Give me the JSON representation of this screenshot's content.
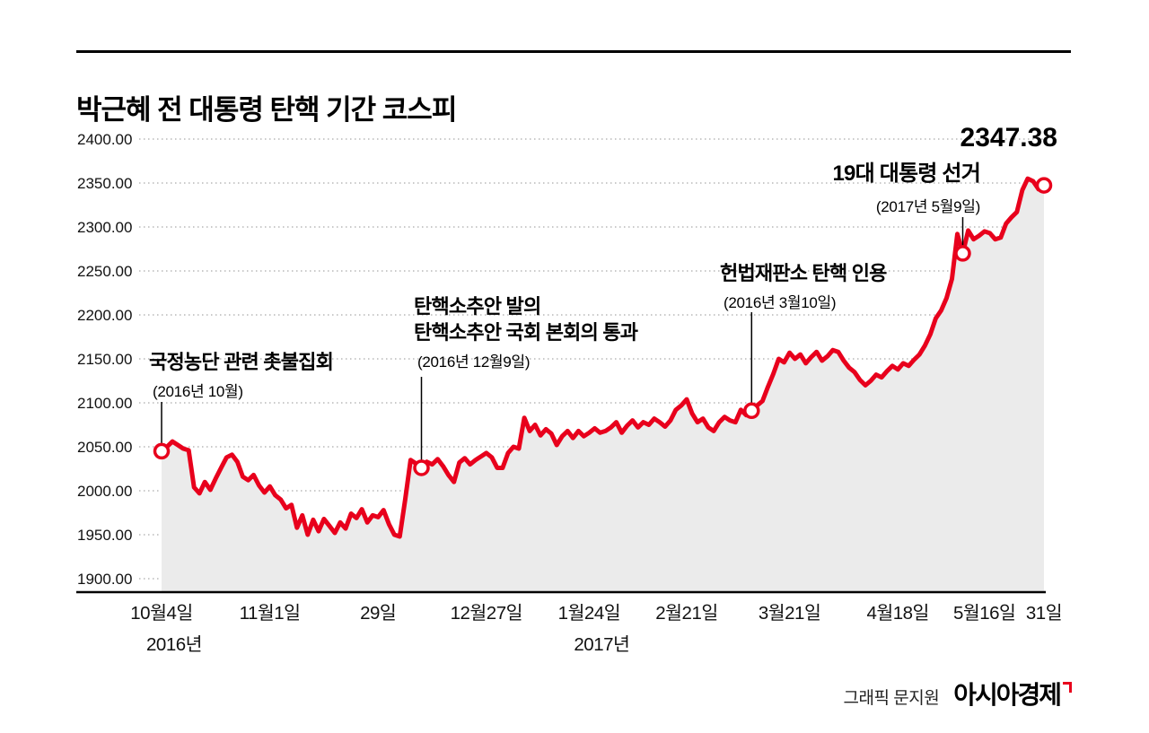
{
  "header": {
    "title": "박근혜 전 대통령 탄핵 기간 코스피"
  },
  "final_label": "2347.38",
  "annotations": [
    {
      "lines": [
        "국정농단 관련 촛불집회"
      ],
      "date": "(2016년 10월)"
    },
    {
      "lines": [
        "탄핵소추안 발의",
        "탄핵소추안 국회 본회의 통과"
      ],
      "date": "(2016년 12월9일)"
    },
    {
      "lines": [
        "헌법재판소 탄핵 인용"
      ],
      "date": "(2016년 3월10일)"
    },
    {
      "lines": [
        "19대 대통령 선거"
      ],
      "date": "(2017년 5월9일)"
    }
  ],
  "footer": {
    "credit": "그래픽 문지원",
    "brand": "아시아경제"
  },
  "chart_data": {
    "type": "line",
    "title": "박근혜 전 대통령 탄핵 기간 코스피",
    "ylabel": "KOSPI",
    "ylim": [
      1900,
      2400
    ],
    "grid": "dotted-horizontal",
    "line_color": "#e8001c",
    "area_color": "#ebebeb",
    "y_ticks": [
      "2400.00",
      "2350.00",
      "2300.00",
      "2250.00",
      "2200.00",
      "2150.00",
      "2100.00",
      "2050.00",
      "2000.00",
      "1950.00",
      "1900.00"
    ],
    "x_ticks": [
      {
        "label": "10월4일",
        "index": 0,
        "year": "2016년"
      },
      {
        "label": "11월1일",
        "index": 20
      },
      {
        "label": "29일",
        "index": 40
      },
      {
        "label": "12월27일",
        "index": 60
      },
      {
        "label": "1월24일",
        "index": 79,
        "year": "2017년"
      },
      {
        "label": "2월21일",
        "index": 97
      },
      {
        "label": "3월21일",
        "index": 116
      },
      {
        "label": "4월18일",
        "index": 136
      },
      {
        "label": "5월16일",
        "index": 152
      },
      {
        "label": "31일",
        "index": 163
      }
    ],
    "markers": [
      0,
      48,
      109,
      148,
      163
    ],
    "last_value": 2347.38,
    "series": [
      {
        "name": "코스피",
        "values": [
          2045,
          2050,
          2056,
          2052,
          2048,
          2046,
          2004,
          1997,
          2010,
          2001,
          2014,
          2026,
          2038,
          2041,
          2033,
          2016,
          2012,
          2018,
          2006,
          1998,
          2005,
          1995,
          1990,
          1980,
          1984,
          1958,
          1972,
          1950,
          1967,
          1954,
          1968,
          1960,
          1952,
          1964,
          1957,
          1974,
          1969,
          1979,
          1964,
          1972,
          1970,
          1978,
          1962,
          1950,
          1948,
          1990,
          2035,
          2031,
          2026,
          2033,
          2030,
          2036,
          2028,
          2018,
          2010,
          2032,
          2037,
          2030,
          2035,
          2039,
          2043,
          2038,
          2026,
          2026,
          2043,
          2050,
          2048,
          2083,
          2068,
          2075,
          2063,
          2070,
          2065,
          2052,
          2062,
          2068,
          2060,
          2068,
          2062,
          2066,
          2071,
          2066,
          2068,
          2072,
          2078,
          2066,
          2074,
          2080,
          2072,
          2078,
          2075,
          2082,
          2078,
          2073,
          2080,
          2092,
          2097,
          2104,
          2088,
          2078,
          2082,
          2072,
          2068,
          2078,
          2084,
          2080,
          2078,
          2092,
          2086,
          2091,
          2097,
          2102,
          2118,
          2133,
          2150,
          2146,
          2157,
          2150,
          2155,
          2145,
          2152,
          2158,
          2148,
          2153,
          2160,
          2158,
          2148,
          2140,
          2135,
          2126,
          2120,
          2125,
          2132,
          2129,
          2136,
          2142,
          2138,
          2145,
          2142,
          2149,
          2155,
          2165,
          2178,
          2196,
          2205,
          2219,
          2241,
          2292,
          2270,
          2296,
          2286,
          2290,
          2295,
          2293,
          2286,
          2288,
          2304,
          2311,
          2317,
          2342,
          2355,
          2352,
          2343,
          2347.38
        ]
      }
    ]
  }
}
